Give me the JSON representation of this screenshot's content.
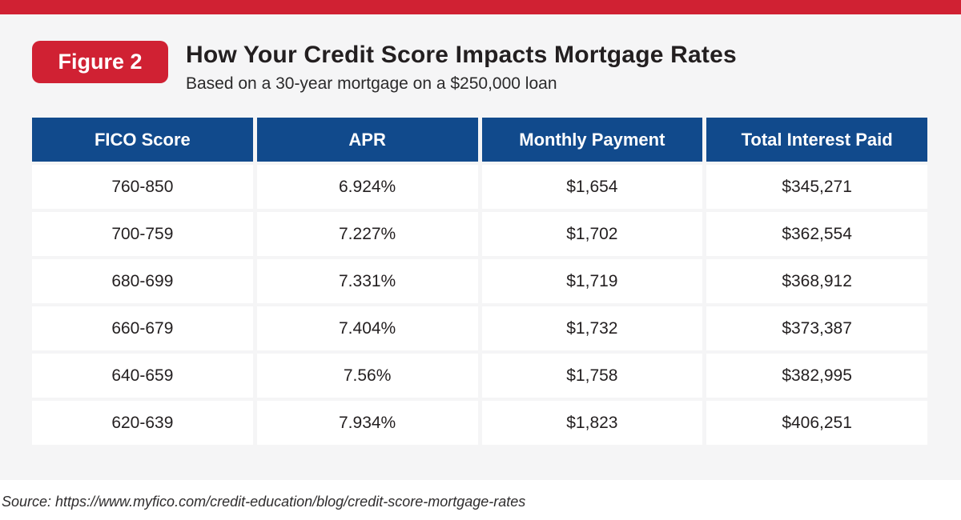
{
  "figure": {
    "badge": "Figure 2",
    "title": "How Your Credit Score Impacts Mortgage Rates",
    "subtitle": "Based on a 30-year mortgage on a $250,000 loan"
  },
  "table": {
    "headers": [
      "FICO Score",
      "APR",
      "Monthly Payment",
      "Total Interest Paid"
    ],
    "rows": [
      [
        "760-850",
        "6.924%",
        "$1,654",
        "$345,271"
      ],
      [
        "700-759",
        "7.227%",
        "$1,702",
        "$362,554"
      ],
      [
        "680-699",
        "7.331%",
        "$1,719",
        "$368,912"
      ],
      [
        "660-679",
        "7.404%",
        "$1,732",
        "$373,387"
      ],
      [
        "640-659",
        "7.56%",
        "$1,758",
        "$382,995"
      ],
      [
        "620-639",
        "7.934%",
        "$1,823",
        "$406,251"
      ]
    ]
  },
  "source": "Source: https://www.myfico.com/credit-education/blog/credit-score-mortgage-rates",
  "colors": {
    "accent_red": "#d02133",
    "header_blue": "#114a8c",
    "card_bg": "#f5f5f6",
    "text_dark": "#231f20"
  },
  "chart_data": {
    "type": "table",
    "title": "How Your Credit Score Impacts Mortgage Rates",
    "subtitle": "Based on a 30-year mortgage on a $250,000 loan",
    "columns": [
      "FICO Score",
      "APR",
      "Monthly Payment",
      "Total Interest Paid"
    ],
    "rows": [
      {
        "fico_score": "760-850",
        "apr_percent": 6.924,
        "monthly_payment_usd": 1654,
        "total_interest_paid_usd": 345271
      },
      {
        "fico_score": "700-759",
        "apr_percent": 7.227,
        "monthly_payment_usd": 1702,
        "total_interest_paid_usd": 362554
      },
      {
        "fico_score": "680-699",
        "apr_percent": 7.331,
        "monthly_payment_usd": 1719,
        "total_interest_paid_usd": 368912
      },
      {
        "fico_score": "660-679",
        "apr_percent": 7.404,
        "monthly_payment_usd": 1732,
        "total_interest_paid_usd": 373387
      },
      {
        "fico_score": "640-659",
        "apr_percent": 7.56,
        "monthly_payment_usd": 1758,
        "total_interest_paid_usd": 382995
      },
      {
        "fico_score": "620-639",
        "apr_percent": 7.934,
        "monthly_payment_usd": 1823,
        "total_interest_paid_usd": 406251
      }
    ],
    "source": "https://www.myfico.com/credit-education/blog/credit-score-mortgage-rates"
  }
}
